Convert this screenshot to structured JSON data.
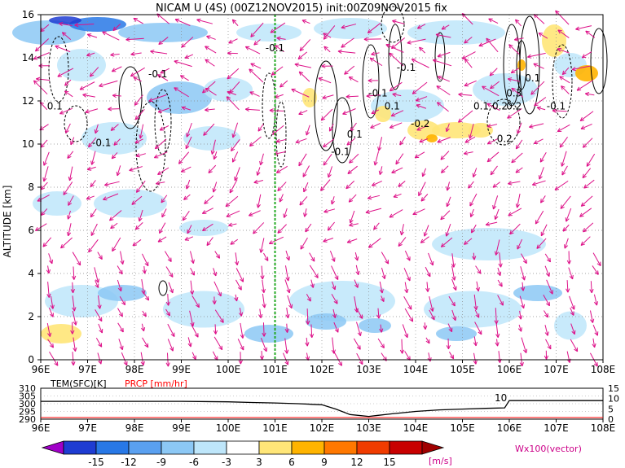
{
  "title": "NICAM U (4S) (00Z12NOV2015) init:00Z09NOV2015 fix",
  "chart_data": [
    {
      "type": "heatmap",
      "title": "NICAM U (4S) (00Z12NOV2015) init:00Z09NOV2015 fix",
      "ylabel": "ALTITUDE [km]",
      "xlabel": "",
      "x_ticks": [
        "96E",
        "97E",
        "98E",
        "99E",
        "100E",
        "101E",
        "102E",
        "103E",
        "104E",
        "105E",
        "106E",
        "107E",
        "108E"
      ],
      "y_ticks": [
        "0",
        "2",
        "4",
        "6",
        "8",
        "10",
        "12",
        "14",
        "16"
      ],
      "xlim": [
        96,
        108
      ],
      "ylim": [
        0,
        16
      ],
      "grid": true,
      "contour_labels": [
        {
          "text": "-0.1",
          "lon": 97.3,
          "alt": 9.9
        },
        {
          "text": "0.1",
          "lon": 96.3,
          "alt": 11.6
        },
        {
          "text": "-0.1",
          "lon": 98.5,
          "alt": 13.1
        },
        {
          "text": "-0.1",
          "lon": 101.0,
          "alt": 14.3
        },
        {
          "text": "-0.1",
          "lon": 102.4,
          "alt": 9.5
        },
        {
          "text": "-0.1",
          "lon": 103.2,
          "alt": 12.2
        },
        {
          "text": "0.1",
          "lon": 102.7,
          "alt": 10.3
        },
        {
          "text": "0.1",
          "lon": 103.5,
          "alt": 11.6
        },
        {
          "text": "-0.1",
          "lon": 103.8,
          "alt": 13.4
        },
        {
          "text": "-0.2",
          "lon": 104.1,
          "alt": 10.8
        },
        {
          "text": "0.1",
          "lon": 105.4,
          "alt": 11.6
        },
        {
          "text": "0.2",
          "lon": 105.8,
          "alt": 11.6
        },
        {
          "text": "0.2",
          "lon": 106.1,
          "alt": 11.6
        },
        {
          "text": "0.3",
          "lon": 106.1,
          "alt": 12.2
        },
        {
          "text": "0.2",
          "lon": 105.9,
          "alt": 10.1
        },
        {
          "text": "0.1",
          "lon": 106.5,
          "alt": 12.9
        },
        {
          "text": "-0.1",
          "lon": 107.0,
          "alt": 11.6
        }
      ],
      "marker_line_lon": 101.0
    },
    {
      "type": "line",
      "title": "",
      "labels": [
        "TEM(SFC)[K]",
        "PRCP [mm/hr]"
      ],
      "left_ticks": [
        "310",
        "305",
        "300",
        "295",
        "290"
      ],
      "right_ticks": [
        "15",
        "10",
        "5",
        "0"
      ],
      "x_ticks": [
        "96E",
        "97E",
        "98E",
        "99E",
        "100E",
        "101E",
        "102E",
        "103E",
        "104E",
        "105E",
        "106E",
        "107E",
        "108E"
      ],
      "series": [
        {
          "name": "TEM(SFC)[K]",
          "color": "#000000",
          "x": [
            96,
            97,
            98,
            99,
            100,
            100.5,
            101,
            101.5,
            102,
            102.3,
            102.6,
            103,
            103.2,
            103.5,
            104,
            104.5,
            105,
            105.5,
            105.9,
            106,
            106.5,
            107,
            108
          ],
          "y": [
            301.5,
            301.5,
            301.5,
            301.5,
            301.2,
            300.8,
            300.5,
            300.0,
            299.3,
            296.5,
            293.0,
            291.8,
            292.5,
            293.5,
            295.0,
            296.0,
            296.5,
            297.0,
            297.3,
            302.0,
            302.0,
            302.0,
            302.0
          ]
        },
        {
          "name": "PRCP [mm/hr]",
          "color": "#ff0000",
          "x": [
            96,
            108
          ],
          "y": [
            0,
            0
          ]
        }
      ],
      "annotation": "10"
    },
    {
      "type": "colorbar",
      "tick_labels": [
        "-15",
        "-12",
        "-9",
        "-6",
        "-3",
        "3",
        "6",
        "9",
        "12",
        "15"
      ],
      "unit": "[m/s]",
      "colors": [
        "#a000c8",
        "#1e3cd2",
        "#2878e6",
        "#5aa0f0",
        "#8cc8f5",
        "#bee6fa",
        "#ffffff",
        "#ffe678",
        "#ffb400",
        "#ff7800",
        "#f03c00",
        "#c80000",
        "#a00000"
      ],
      "vector_label": "Wx100(vector)"
    }
  ]
}
